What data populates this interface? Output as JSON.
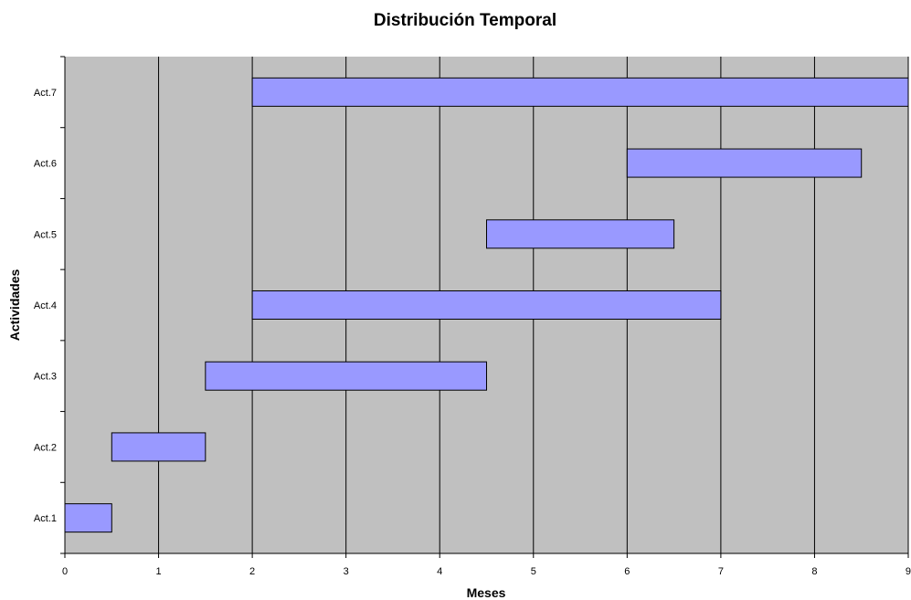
{
  "chart_data": {
    "type": "bar",
    "orientation": "horizontal",
    "subtype": "gantt",
    "title": "Distribución Temporal",
    "xlabel": "Meses",
    "ylabel": "Actividades",
    "xlim": [
      0,
      9
    ],
    "x_ticks": [
      "0",
      "1",
      "2",
      "3",
      "4",
      "5",
      "6",
      "7",
      "8",
      "9"
    ],
    "categories": [
      "Act.1",
      "Act.2",
      "Act.3",
      "Act.4",
      "Act.5",
      "Act.6",
      "Act.7"
    ],
    "series": [
      {
        "start": [
          0,
          0.5,
          1.5,
          2,
          4.5,
          6,
          2
        ],
        "end": [
          0.5,
          1.5,
          4.5,
          7,
          6.5,
          8.5,
          9
        ]
      }
    ],
    "grid": "vertical",
    "colors": {
      "plot_background": "#c0c0c0",
      "bar_fill": "#9999ff",
      "bar_stroke": "#000000",
      "grid": "#000000"
    }
  }
}
